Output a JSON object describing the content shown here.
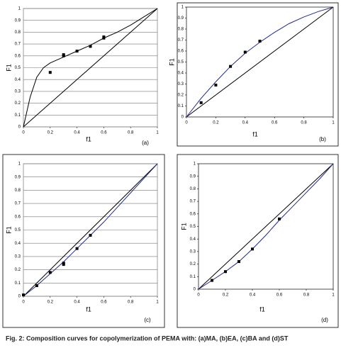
{
  "chart_data": [
    {
      "type": "line",
      "label": "(a)",
      "x_label": "f1",
      "y_label": "F1",
      "xlim": [
        0,
        1
      ],
      "ylim": [
        0,
        1
      ],
      "xticks": [
        0,
        0.2,
        0.4,
        0.6,
        0.8,
        1
      ],
      "yticks": [
        0,
        0.1,
        0.2,
        0.3,
        0.4,
        0.5,
        0.6,
        0.7,
        0.8,
        0.9,
        1
      ],
      "grid": true,
      "series": [
        {
          "mode": "line",
          "color": "#000000",
          "x": [
            0,
            1
          ],
          "values": [
            0,
            1
          ]
        },
        {
          "mode": "line",
          "color": "#000000",
          "x": [
            0,
            0.05,
            0.1,
            0.15,
            0.2,
            0.3,
            0.4,
            0.5,
            0.6,
            0.7,
            0.8,
            0.9,
            1
          ],
          "values": [
            0,
            0.25,
            0.42,
            0.5,
            0.54,
            0.59,
            0.64,
            0.69,
            0.75,
            0.8,
            0.86,
            0.93,
            1
          ]
        },
        {
          "mode": "markers",
          "color": "#000000",
          "x": [
            0.2,
            0.3,
            0.3,
            0.4,
            0.5,
            0.6,
            0.6
          ],
          "values": [
            0.46,
            0.6,
            0.61,
            0.64,
            0.68,
            0.75,
            0.76
          ]
        }
      ]
    },
    {
      "type": "line",
      "label": "(b)",
      "x_label": "f1",
      "y_label": "F1",
      "xlim": [
        0,
        1
      ],
      "ylim": [
        0,
        1
      ],
      "xticks": [
        0,
        0.2,
        0.4,
        0.6,
        0.8,
        1
      ],
      "yticks": [
        0,
        0.1,
        0.2,
        0.3,
        0.4,
        0.5,
        0.6,
        0.7,
        0.8,
        0.9,
        1
      ],
      "grid": false,
      "series": [
        {
          "mode": "line",
          "color": "#000000",
          "x": [
            0,
            1
          ],
          "values": [
            0,
            1
          ]
        },
        {
          "mode": "line",
          "color": "#1f2a8a",
          "x": [
            0,
            0.1,
            0.2,
            0.3,
            0.4,
            0.5,
            0.6,
            0.7,
            0.8,
            0.9,
            1
          ],
          "values": [
            0,
            0.17,
            0.32,
            0.46,
            0.58,
            0.68,
            0.77,
            0.85,
            0.91,
            0.96,
            1
          ]
        },
        {
          "mode": "markers",
          "color": "#000000",
          "x": [
            0.1,
            0.2,
            0.3,
            0.4,
            0.5
          ],
          "values": [
            0.13,
            0.29,
            0.46,
            0.59,
            0.69
          ]
        }
      ]
    },
    {
      "type": "line",
      "label": "(c)",
      "x_label": "f1",
      "y_label": "F1",
      "xlim": [
        0,
        1
      ],
      "ylim": [
        0,
        1
      ],
      "xticks": [
        0,
        0.2,
        0.4,
        0.6,
        0.8,
        1
      ],
      "yticks": [
        0,
        0.1,
        0.2,
        0.3,
        0.4,
        0.5,
        0.6,
        0.7,
        0.8,
        0.9,
        1
      ],
      "grid": true,
      "series": [
        {
          "mode": "line",
          "color": "#000000",
          "x": [
            0,
            1
          ],
          "values": [
            0,
            1
          ]
        },
        {
          "mode": "line",
          "color": "#1f2a8a",
          "x": [
            0,
            0.1,
            0.2,
            0.3,
            0.4,
            0.5,
            0.6,
            0.7,
            0.8,
            0.9,
            1
          ],
          "values": [
            0,
            0.08,
            0.17,
            0.26,
            0.36,
            0.46,
            0.56,
            0.67,
            0.78,
            0.89,
            1
          ]
        },
        {
          "mode": "markers",
          "color": "#000000",
          "x": [
            0,
            0.1,
            0.2,
            0.3,
            0.3,
            0.4,
            0.5
          ],
          "values": [
            0.01,
            0.08,
            0.18,
            0.24,
            0.25,
            0.36,
            0.46
          ]
        }
      ]
    },
    {
      "type": "line",
      "label": "(d)",
      "x_label": "f1",
      "y_label": "F1",
      "xlim": [
        0,
        1
      ],
      "ylim": [
        0,
        1
      ],
      "xticks": [
        0,
        0.2,
        0.4,
        0.6,
        0.8,
        1
      ],
      "yticks": [
        0,
        0.1,
        0.2,
        0.3,
        0.4,
        0.5,
        0.6,
        0.7,
        0.8,
        0.9,
        1
      ],
      "grid": false,
      "series": [
        {
          "mode": "line",
          "color": "#000000",
          "x": [
            0,
            1
          ],
          "values": [
            0,
            1
          ]
        },
        {
          "mode": "line",
          "color": "#1f2a8a",
          "x": [
            0,
            0.1,
            0.2,
            0.3,
            0.4,
            0.5,
            0.6,
            0.7,
            0.8,
            0.9,
            1
          ],
          "values": [
            0,
            0.07,
            0.14,
            0.22,
            0.32,
            0.43,
            0.55,
            0.66,
            0.77,
            0.88,
            1
          ]
        },
        {
          "mode": "markers",
          "color": "#000000",
          "x": [
            0.1,
            0.2,
            0.3,
            0.4,
            0.6
          ],
          "values": [
            0.07,
            0.14,
            0.22,
            0.32,
            0.56
          ]
        }
      ]
    }
  ],
  "caption": "Fig. 2: Composition curves for copolymerization of  PEMA with: (a)MA, (b)EA, (c)BA and (d)ST"
}
